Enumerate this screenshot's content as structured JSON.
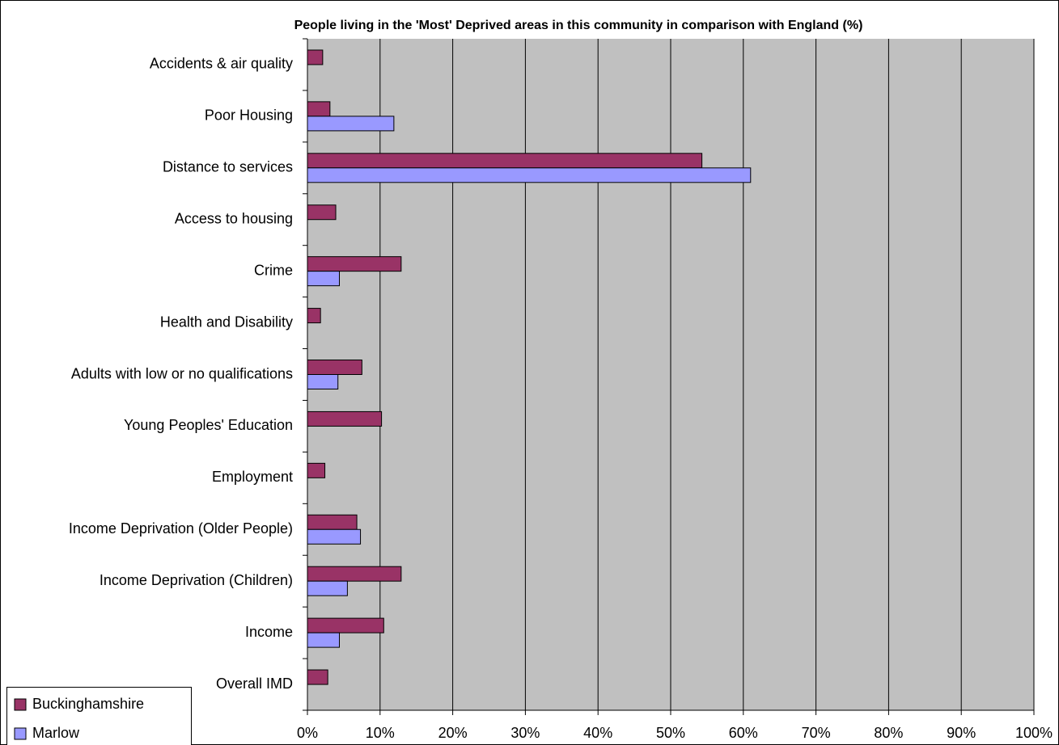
{
  "chart_data": {
    "type": "bar",
    "orientation": "horizontal",
    "title": "People living in the 'Most' Deprived areas in this community in comparison with England (%)",
    "categories": [
      "Accidents & air quality",
      "Poor Housing",
      "Distance to services",
      "Access to housing",
      "Crime",
      "Health and Disability",
      "Adults with low or no qualifications",
      "Young Peoples' Education",
      "Employment",
      "Income Deprivation (Older People)",
      "Income Deprivation (Children)",
      "Income",
      "Overall IMD"
    ],
    "series": [
      {
        "name": "Buckinghamshire",
        "color": "#993366",
        "values": [
          2.1,
          3.1,
          54.3,
          3.9,
          12.9,
          1.8,
          7.5,
          10.2,
          2.4,
          6.8,
          12.9,
          10.5,
          2.8
        ]
      },
      {
        "name": "Marlow",
        "color": "#9999ff",
        "values": [
          null,
          11.9,
          61.0,
          null,
          4.4,
          null,
          4.2,
          null,
          null,
          7.3,
          5.5,
          4.4,
          null
        ]
      }
    ],
    "xlim": [
      0,
      100
    ],
    "xticks": [
      {
        "value": 0,
        "label": "0%"
      },
      {
        "value": 10,
        "label": "10%"
      },
      {
        "value": 20,
        "label": "20%"
      },
      {
        "value": 30,
        "label": "30%"
      },
      {
        "value": 40,
        "label": "40%"
      },
      {
        "value": 50,
        "label": "50%"
      },
      {
        "value": 60,
        "label": "60%"
      },
      {
        "value": 70,
        "label": "70%"
      },
      {
        "value": 80,
        "label": "80%"
      },
      {
        "value": 90,
        "label": "90%"
      },
      {
        "value": 100,
        "label": "100%"
      }
    ],
    "grid": true,
    "legend": "bottom-left"
  }
}
